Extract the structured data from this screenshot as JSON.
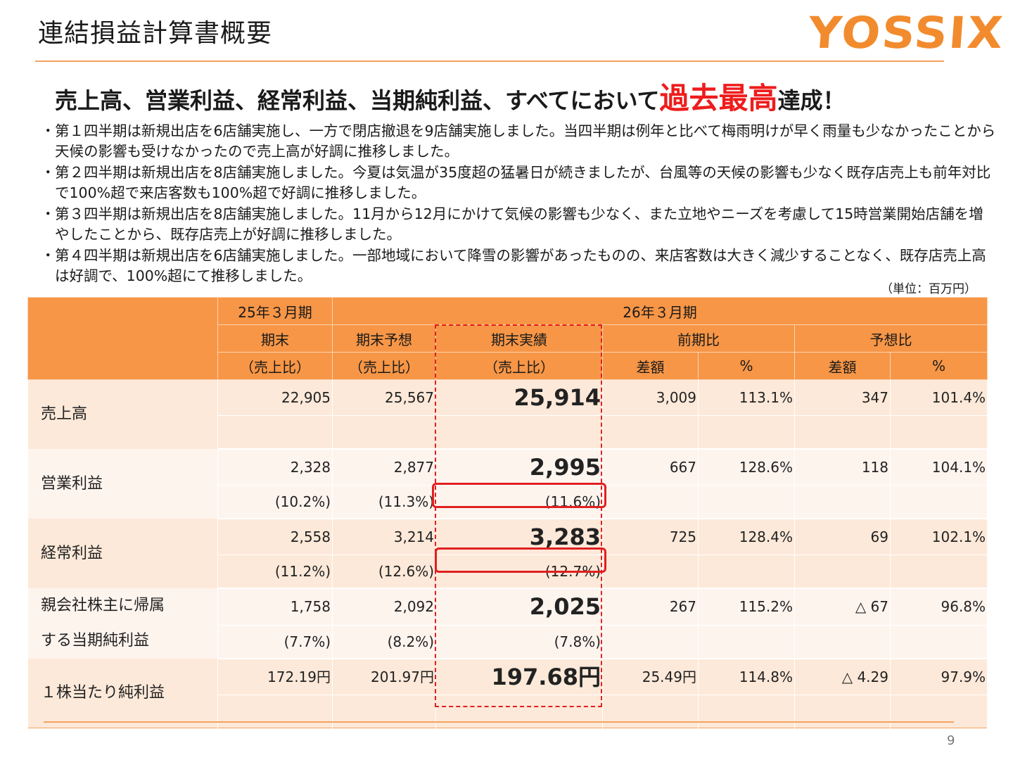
{
  "header": {
    "title": "連結損益計算書概要",
    "logo_text": "YOSSIX",
    "headline_prefix": "売上高、営業利益、経常利益、当期純利益、すべてにおいて",
    "headline_accent": "過去最高",
    "headline_suffix": "達成！"
  },
  "bullets": [
    "第１四半期は新規出店を6店舗実施し、一方で閉店撤退を9店舗実施しました。当四半期は例年と比べて梅雨明けが早く雨量も少なかったことから天候の影響も受けなかったので売上高が好調に推移しました。",
    "第２四半期は新規出店を8店舗実施しました。今夏は気温が35度超の猛暑日が続きましたが、台風等の天候の影響も少なく既存店売上も前年対比で100%超で来店客数も100%超で好調に推移しました。",
    "第３四半期は新規出店を8店舗実施しました。11月から12月にかけて気候の影響も少なく、また立地やニーズを考慮して15時営業開始店舗を増やしたことから、既存店売上が好調に推移しました。",
    "第４四半期は新規出店を6店舗実施しました。一部地域において降雪の影響があったものの、来店客数は大きく減少することなく、既存店売上高は好調で、100%超にて推移しました。"
  ],
  "unit_note": "（単位：百万円）",
  "table": {
    "head": {
      "prev_period": "25年３月期",
      "curr_period": "26年３月期",
      "prev_end": "期末",
      "forecast": "期末予想",
      "actual": "期末実績",
      "yoy": "前期比",
      "vs_forecast": "予想比",
      "ratio_prev": "（売上比）",
      "ratio_forecast": "（売上比）",
      "ratio_actual": "（売上比）",
      "yoy_diff": "差額",
      "yoy_pct": "%",
      "fc_diff": "差額",
      "fc_pct": "%"
    },
    "rows": [
      {
        "label": "売上高",
        "prev": "22,905",
        "forecast": "25,567",
        "actual": "25,914",
        "yoy_diff": "3,009",
        "yoy_pct": "113.1%",
        "fc_diff": "347",
        "fc_pct": "101.4%",
        "prev_ratio": "",
        "forecast_ratio": "",
        "actual_ratio": ""
      },
      {
        "label": "営業利益",
        "prev": "2,328",
        "forecast": "2,877",
        "actual": "2,995",
        "yoy_diff": "667",
        "yoy_pct": "128.6%",
        "fc_diff": "118",
        "fc_pct": "104.1%",
        "prev_ratio": "(10.2%)",
        "forecast_ratio": "(11.3%)",
        "actual_ratio": "(11.6%)"
      },
      {
        "label": "経常利益",
        "prev": "2,558",
        "forecast": "3,214",
        "actual": "3,283",
        "yoy_diff": "725",
        "yoy_pct": "128.4%",
        "fc_diff": "69",
        "fc_pct": "102.1%",
        "prev_ratio": "(11.2%)",
        "forecast_ratio": "(12.6%)",
        "actual_ratio": "(12.7%)"
      },
      {
        "label_line1": "親会社株主に帰属",
        "label_line2": "する当期純利益",
        "prev": "1,758",
        "forecast": "2,092",
        "actual": "2,025",
        "yoy_diff": "267",
        "yoy_pct": "115.2%",
        "fc_diff": "△ 67",
        "fc_pct": "96.8%",
        "prev_ratio": "(7.7%)",
        "forecast_ratio": "(8.2%)",
        "actual_ratio": "(7.8%)"
      },
      {
        "label": "１株当たり純利益",
        "prev": "172.19円",
        "forecast": "201.97円",
        "actual": "197.68円",
        "yoy_diff": "25.49円",
        "yoy_pct": "114.8%",
        "fc_diff": "△ 4.29",
        "fc_pct": "97.9%",
        "prev_ratio": "",
        "forecast_ratio": "",
        "actual_ratio": ""
      }
    ]
  },
  "footer": {
    "page_number": "9"
  },
  "colors": {
    "accent_orange": "#f79646",
    "highlight_red": "#e02020",
    "logo_orange": "#f28b2d"
  }
}
